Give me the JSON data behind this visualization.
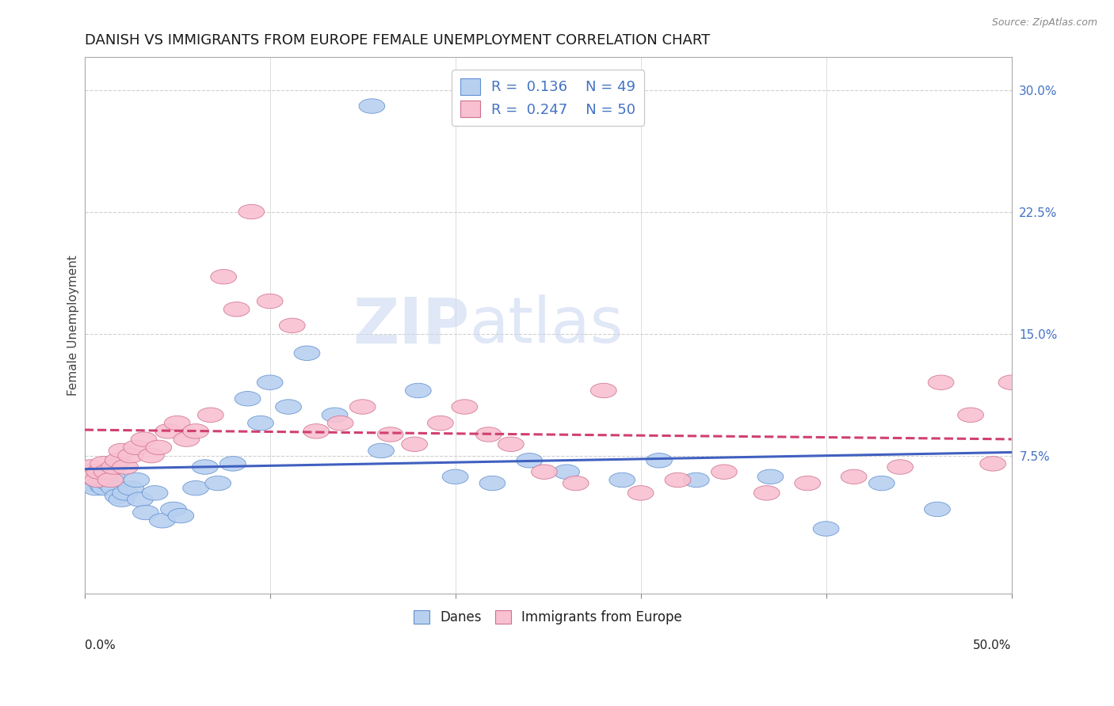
{
  "title": "DANISH VS IMMIGRANTS FROM EUROPE FEMALE UNEMPLOYMENT CORRELATION CHART",
  "source": "Source: ZipAtlas.com",
  "ylabel": "Female Unemployment",
  "xlim": [
    0.0,
    0.5
  ],
  "ylim": [
    -0.01,
    0.32
  ],
  "yticks": [
    0.075,
    0.15,
    0.225,
    0.3
  ],
  "ytick_labels": [
    "7.5%",
    "15.0%",
    "22.5%",
    "30.0%"
  ],
  "xticks": [
    0.0,
    0.1,
    0.2,
    0.3,
    0.4,
    0.5
  ],
  "xtick_labels": [
    "",
    "",
    "",
    "",
    "",
    ""
  ],
  "grid_color": "#d0d0d0",
  "background_color": "#ffffff",
  "danes_color": "#b8d0f0",
  "danes_edge_color": "#6090d0",
  "immigrants_color": "#f8c0d0",
  "immigrants_edge_color": "#d07090",
  "danes_line_color": "#4060c0",
  "immigrants_line_color": "#d04070",
  "legend_R1": "0.136",
  "legend_N1": "49",
  "legend_R2": "0.247",
  "legend_N2": "50",
  "danes_x": [
    0.002,
    0.003,
    0.004,
    0.005,
    0.006,
    0.007,
    0.008,
    0.009,
    0.01,
    0.011,
    0.012,
    0.013,
    0.015,
    0.016,
    0.018,
    0.02,
    0.022,
    0.025,
    0.028,
    0.03,
    0.033,
    0.038,
    0.042,
    0.048,
    0.052,
    0.06,
    0.065,
    0.072,
    0.08,
    0.088,
    0.095,
    0.1,
    0.11,
    0.12,
    0.135,
    0.155,
    0.16,
    0.18,
    0.2,
    0.22,
    0.24,
    0.26,
    0.29,
    0.31,
    0.33,
    0.37,
    0.4,
    0.43,
    0.46
  ],
  "danes_y": [
    0.062,
    0.06,
    0.058,
    0.057,
    0.055,
    0.06,
    0.062,
    0.058,
    0.056,
    0.055,
    0.06,
    0.058,
    0.062,
    0.055,
    0.05,
    0.048,
    0.052,
    0.055,
    0.06,
    0.048,
    0.04,
    0.052,
    0.035,
    0.042,
    0.038,
    0.055,
    0.068,
    0.058,
    0.07,
    0.11,
    0.095,
    0.12,
    0.105,
    0.138,
    0.1,
    0.29,
    0.078,
    0.115,
    0.062,
    0.058,
    0.072,
    0.065,
    0.06,
    0.072,
    0.06,
    0.062,
    0.03,
    0.058,
    0.042
  ],
  "immigrants_x": [
    0.002,
    0.003,
    0.005,
    0.007,
    0.008,
    0.01,
    0.012,
    0.014,
    0.016,
    0.018,
    0.02,
    0.022,
    0.025,
    0.028,
    0.032,
    0.036,
    0.04,
    0.045,
    0.05,
    0.055,
    0.06,
    0.068,
    0.075,
    0.082,
    0.09,
    0.1,
    0.112,
    0.125,
    0.138,
    0.15,
    0.165,
    0.178,
    0.192,
    0.205,
    0.218,
    0.23,
    0.248,
    0.265,
    0.28,
    0.3,
    0.32,
    0.345,
    0.368,
    0.39,
    0.415,
    0.44,
    0.462,
    0.478,
    0.49,
    0.5
  ],
  "immigrants_y": [
    0.065,
    0.068,
    0.062,
    0.06,
    0.065,
    0.07,
    0.065,
    0.06,
    0.068,
    0.072,
    0.078,
    0.068,
    0.075,
    0.08,
    0.085,
    0.075,
    0.08,
    0.09,
    0.095,
    0.085,
    0.09,
    0.1,
    0.185,
    0.165,
    0.225,
    0.17,
    0.155,
    0.09,
    0.095,
    0.105,
    0.088,
    0.082,
    0.095,
    0.105,
    0.088,
    0.082,
    0.065,
    0.058,
    0.115,
    0.052,
    0.06,
    0.065,
    0.052,
    0.058,
    0.062,
    0.068,
    0.12,
    0.1,
    0.07,
    0.12
  ],
  "watermark_zip": "ZIP",
  "watermark_atlas": "atlas",
  "title_fontsize": 13,
  "axis_label_fontsize": 11,
  "tick_fontsize": 11,
  "source_fontsize": 9
}
